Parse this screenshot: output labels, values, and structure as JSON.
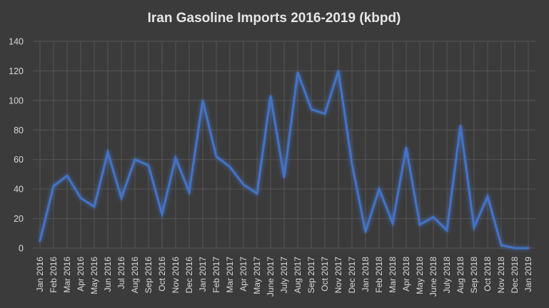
{
  "chart_data": {
    "type": "line",
    "title": "Iran Gasoline Imports 2016-2019 (kbpd)",
    "xlabel": "",
    "ylabel": "",
    "ylim": [
      0,
      140
    ],
    "yticks": [
      0,
      20,
      40,
      60,
      80,
      100,
      120,
      140
    ],
    "grid": true,
    "legend": "none",
    "line_color": "#4472c4",
    "categories": [
      "Jan 2016",
      "Feb 2016",
      "Mar 2016",
      "Apr 2016",
      "May 2016",
      "Jun 2016",
      "Jul 2016",
      "Aug 2016",
      "Sep 2016",
      "Oct 2016",
      "Nov 2016",
      "Dec 2016",
      "Jan 2017",
      "Feb 2017",
      "Mar 2017",
      "Apr 2017",
      "May 2017",
      "June 2017",
      "July 2017",
      "Aug 2017",
      "Sep 2017",
      "Oct 2017",
      "Nov 2017",
      "Dec 2017",
      "Jan 2018",
      "Feb 2018",
      "Mar 2018",
      "Apr 2018",
      "May 2018",
      "June 2018",
      "July 2018",
      "Aug 2018",
      "Sep 2018",
      "Oct 2018",
      "Nov 2018",
      "Dec 2018",
      "Jan 2019"
    ],
    "series": [
      {
        "values": [
          5,
          42,
          49,
          34,
          28,
          65,
          34,
          60,
          56,
          23,
          61,
          38,
          100,
          62,
          55,
          43,
          37,
          103,
          48,
          119,
          94,
          91,
          120,
          57,
          11,
          40,
          17,
          68,
          16,
          21,
          12,
          83,
          14,
          35,
          2,
          0,
          0
        ]
      }
    ]
  }
}
